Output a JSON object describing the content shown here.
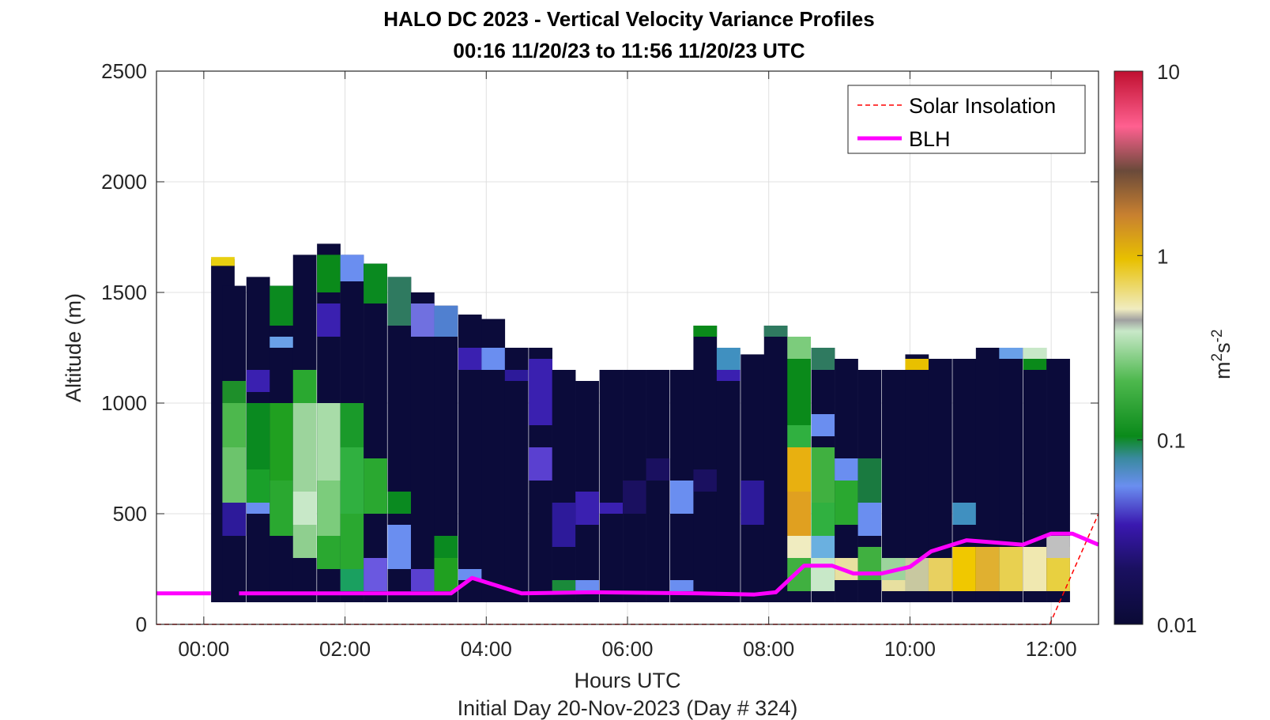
{
  "chart_data": {
    "type": "heatmap",
    "title": "HALO DC 2023 - Vertical Velocity Variance Profiles",
    "subtitle": "00:16 11/20/23 to 11:56 11/20/23  UTC",
    "xlabel": "Hours UTC",
    "ylabel": "Altitude (m)",
    "footer": "Initial Day 20-Nov-2023 (Day # 324)",
    "colorbar_label_base": "m",
    "colorbar_label_sup1": "2",
    "colorbar_label_mid": "s",
    "colorbar_label_sup2": "-2",
    "xlim_hours": [
      -0.67,
      12.67
    ],
    "ylim": [
      0,
      2500
    ],
    "xticks": [
      0,
      2,
      4,
      6,
      8,
      10,
      12
    ],
    "xtick_labels": [
      "00:00",
      "02:00",
      "04:00",
      "06:00",
      "08:00",
      "10:00",
      "12:00"
    ],
    "yticks": [
      0,
      500,
      1000,
      1500,
      2000,
      2500
    ],
    "ytick_labels": [
      "0",
      "500",
      "1000",
      "1500",
      "2000",
      "2500"
    ],
    "colorbar_ticks": [
      0.01,
      0.1,
      1,
      10
    ],
    "colorbar_tick_labels": [
      "0.01",
      "0.1",
      "1",
      "10"
    ],
    "colorbar_scale": "log",
    "grid": true,
    "legend_position": "top-right",
    "legend": [
      {
        "name": "Solar Insolation",
        "color": "#ff0000",
        "style": "dashed"
      },
      {
        "name": "BLH",
        "color": "#ff00ff",
        "style": "solid"
      }
    ],
    "bin_width_hours": 0.333,
    "bin_height_m": 50,
    "profiles": [
      {
        "t": 0.27,
        "top": 1650,
        "cols": [
          [
            1620,
            1660,
            "#e8cf10"
          ]
        ]
      },
      {
        "t": 0.43,
        "top": 1530,
        "cols": [
          [
            1000,
            1100,
            "#1e8f2a"
          ],
          [
            800,
            1000,
            "#4db84d"
          ],
          [
            550,
            800,
            "#6cc46c"
          ],
          [
            400,
            550,
            "#2d1a9a"
          ]
        ]
      },
      {
        "t": 0.77,
        "top": 1570,
        "cols": [
          [
            1050,
            1150,
            "#3a20b0"
          ],
          [
            700,
            1000,
            "#0a8a20"
          ],
          [
            550,
            700,
            "#1aa02a"
          ],
          [
            500,
            550,
            "#6a8ef0"
          ]
        ]
      },
      {
        "t": 1.1,
        "top": 1530,
        "cols": [
          [
            1350,
            1530,
            "#0b8a1f"
          ],
          [
            1250,
            1300,
            "#6aa0e8"
          ],
          [
            650,
            1000,
            "#20a020"
          ],
          [
            400,
            650,
            "#2aa830"
          ]
        ]
      },
      {
        "t": 1.43,
        "top": 1670,
        "cols": [
          [
            1000,
            1150,
            "#2aa830"
          ],
          [
            600,
            1000,
            "#9cd49c"
          ],
          [
            450,
            600,
            "#c8e8c8"
          ],
          [
            300,
            450,
            "#8fcf8f"
          ]
        ]
      },
      {
        "t": 1.77,
        "top": 1720,
        "cols": [
          [
            1500,
            1670,
            "#0a8a1a"
          ],
          [
            1300,
            1450,
            "#3a20b0"
          ],
          [
            650,
            1000,
            "#a8dca8"
          ],
          [
            400,
            650,
            "#7ccc7c"
          ],
          [
            250,
            400,
            "#2aa830"
          ]
        ]
      },
      {
        "t": 2.1,
        "top": 1670,
        "cols": [
          [
            1550,
            1670,
            "#6a8ef0"
          ],
          [
            800,
            1000,
            "#1a9a2a"
          ],
          [
            500,
            800,
            "#30b040"
          ],
          [
            250,
            500,
            "#2aa830"
          ],
          [
            150,
            250,
            "#1aa060"
          ]
        ]
      },
      {
        "t": 2.43,
        "top": 1630,
        "cols": [
          [
            1450,
            1630,
            "#0a8a20"
          ],
          [
            500,
            750,
            "#2aa830"
          ],
          [
            150,
            300,
            "#6a58e0"
          ]
        ]
      },
      {
        "t": 2.77,
        "top": 1570,
        "cols": [
          [
            1350,
            1570,
            "#2f7a60"
          ],
          [
            500,
            600,
            "#0a8a20"
          ],
          [
            250,
            450,
            "#6a8ef0"
          ]
        ]
      },
      {
        "t": 3.1,
        "top": 1500,
        "cols": [
          [
            1300,
            1450,
            "#7070e0"
          ],
          [
            150,
            250,
            "#5a40d0"
          ]
        ]
      },
      {
        "t": 3.43,
        "top": 1440,
        "cols": [
          [
            1300,
            1440,
            "#5080d0"
          ],
          [
            300,
            400,
            "#0a8a20"
          ],
          [
            150,
            300,
            "#20a020"
          ]
        ]
      },
      {
        "t": 3.77,
        "top": 1400,
        "cols": [
          [
            1150,
            1250,
            "#3a20b0"
          ],
          [
            200,
            250,
            "#6a8ef0"
          ]
        ]
      },
      {
        "t": 4.1,
        "top": 1380,
        "cols": [
          [
            1150,
            1250,
            "#6a8ef0"
          ]
        ]
      },
      {
        "t": 4.43,
        "top": 1250,
        "cols": [
          [
            1100,
            1150,
            "#2d1a9a"
          ]
        ]
      },
      {
        "t": 4.77,
        "top": 1250,
        "cols": [
          [
            900,
            1200,
            "#3a20b0"
          ],
          [
            650,
            800,
            "#5a40d0"
          ]
        ]
      },
      {
        "t": 5.1,
        "top": 1150,
        "cols": [
          [
            150,
            200,
            "#1a8a3a"
          ],
          [
            350,
            550,
            "#2d1a9a"
          ]
        ]
      },
      {
        "t": 5.43,
        "top": 1100,
        "cols": [
          [
            150,
            200,
            "#6a8ef0"
          ],
          [
            450,
            600,
            "#3a20b0"
          ]
        ]
      },
      {
        "t": 5.77,
        "top": 1150,
        "cols": [
          [
            500,
            550,
            "#3a20b0"
          ]
        ]
      },
      {
        "t": 6.1,
        "top": 1150,
        "cols": [
          [
            500,
            650,
            "#1a1060"
          ]
        ]
      },
      {
        "t": 6.43,
        "top": 1150,
        "cols": [
          [
            650,
            750,
            "#1a1060"
          ]
        ]
      },
      {
        "t": 6.77,
        "top": 1150,
        "cols": [
          [
            500,
            650,
            "#6a8ef0"
          ],
          [
            150,
            200,
            "#6a8ef0"
          ]
        ]
      },
      {
        "t": 7.1,
        "top": 1350,
        "cols": [
          [
            1300,
            1350,
            "#0a8a1a"
          ],
          [
            600,
            700,
            "#1a1060"
          ]
        ]
      },
      {
        "t": 7.43,
        "top": 1250,
        "cols": [
          [
            1150,
            1250,
            "#4090c0"
          ],
          [
            1100,
            1150,
            "#3a20b0"
          ]
        ]
      },
      {
        "t": 7.77,
        "top": 1220,
        "cols": [
          [
            450,
            650,
            "#2d1a9a"
          ]
        ]
      },
      {
        "t": 8.1,
        "top": 1350,
        "cols": [
          [
            1300,
            1350,
            "#2f7a60"
          ]
        ]
      },
      {
        "t": 8.43,
        "top": 1300,
        "cols": [
          [
            1200,
            1300,
            "#7ccc7c"
          ],
          [
            900,
            1200,
            "#0a8a1a"
          ],
          [
            800,
            900,
            "#30b040"
          ],
          [
            600,
            800,
            "#e8b010"
          ],
          [
            400,
            600,
            "#e0a020"
          ],
          [
            300,
            400,
            "#f0ecc0"
          ],
          [
            150,
            300,
            "#40b040"
          ]
        ]
      },
      {
        "t": 8.77,
        "top": 1250,
        "cols": [
          [
            1150,
            1250,
            "#2f7a60"
          ],
          [
            850,
            950,
            "#6a8ef0"
          ],
          [
            550,
            800,
            "#40b040"
          ],
          [
            400,
            550,
            "#30b040"
          ],
          [
            300,
            400,
            "#6ab0e0"
          ],
          [
            150,
            300,
            "#c8e8c8"
          ]
        ]
      },
      {
        "t": 9.1,
        "top": 1200,
        "cols": [
          [
            650,
            750,
            "#6a8ef0"
          ],
          [
            450,
            650,
            "#2aa830"
          ],
          [
            200,
            300,
            "#e8e0a0"
          ]
        ]
      },
      {
        "t": 9.43,
        "top": 1150,
        "cols": [
          [
            550,
            750,
            "#1a7a40"
          ],
          [
            400,
            550,
            "#6a8ef0"
          ],
          [
            200,
            350,
            "#40b040"
          ]
        ]
      },
      {
        "t": 9.77,
        "top": 1150,
        "cols": [
          [
            200,
            300,
            "#9cd49c"
          ],
          [
            150,
            200,
            "#e8e0a0"
          ]
        ]
      },
      {
        "t": 10.1,
        "top": 1220,
        "cols": [
          [
            1150,
            1200,
            "#e8c000"
          ],
          [
            150,
            300,
            "#c8c8a0"
          ]
        ]
      },
      {
        "t": 10.43,
        "top": 1200,
        "cols": [
          [
            150,
            300,
            "#e8d060"
          ]
        ]
      },
      {
        "t": 10.77,
        "top": 1200,
        "cols": [
          [
            450,
            550,
            "#4090c0"
          ],
          [
            150,
            350,
            "#f0c800"
          ]
        ]
      },
      {
        "t": 11.1,
        "top": 1250,
        "cols": [
          [
            150,
            350,
            "#e0b030"
          ]
        ]
      },
      {
        "t": 11.43,
        "top": 1250,
        "cols": [
          [
            1200,
            1250,
            "#6aa0e8"
          ],
          [
            150,
            350,
            "#e8d050"
          ]
        ]
      },
      {
        "t": 11.77,
        "top": 1250,
        "cols": [
          [
            1200,
            1250,
            "#c8e8c8"
          ],
          [
            1150,
            1200,
            "#0a8a1a"
          ],
          [
            150,
            350,
            "#f0e8b0"
          ]
        ]
      },
      {
        "t": 12.1,
        "top": 1200,
        "cols": [
          [
            150,
            350,
            "#e8d040"
          ],
          [
            300,
            400,
            "#c0c0c0"
          ]
        ]
      }
    ],
    "blh": {
      "x": [
        -0.67,
        0.1,
        null,
        0.5,
        3.5,
        3.8,
        4.5,
        5.5,
        7.0,
        7.8,
        8.1,
        8.5,
        8.9,
        9.2,
        9.6,
        10.0,
        10.3,
        10.8,
        11.2,
        11.6,
        12.0,
        12.3,
        12.67
      ],
      "y": [
        140,
        140,
        null,
        140,
        140,
        210,
        140,
        145,
        140,
        135,
        145,
        265,
        265,
        230,
        230,
        260,
        330,
        380,
        370,
        360,
        410,
        410,
        360
      ]
    },
    "solar": {
      "x": [
        -0.67,
        11.98,
        12.67
      ],
      "y": [
        0,
        0,
        500
      ]
    }
  }
}
